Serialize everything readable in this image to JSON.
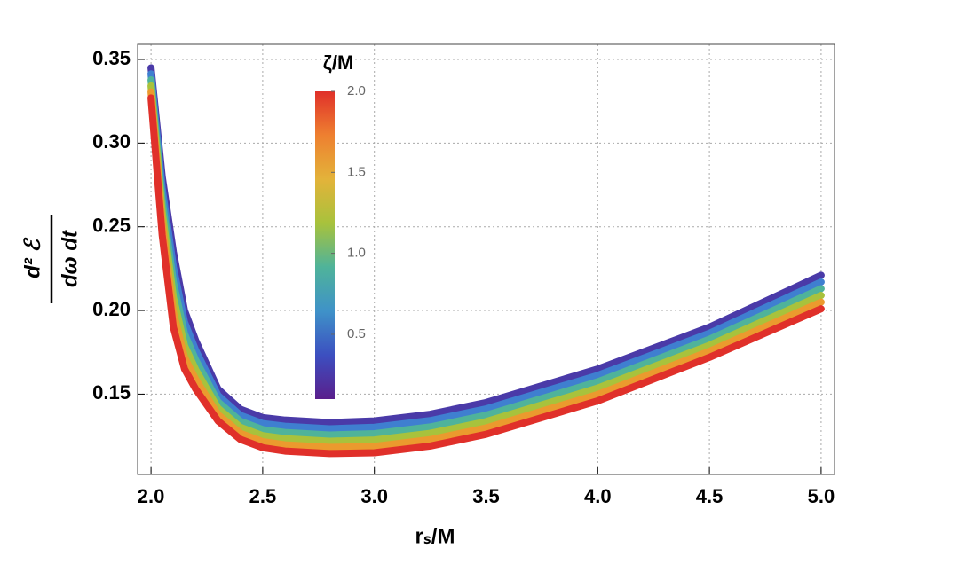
{
  "chart_data": {
    "type": "line",
    "xlabel": "rₛ/M",
    "ylabel": {
      "numerator": "d² ℰ",
      "denominator": "dω dt"
    },
    "x": [
      2.0,
      2.05,
      2.1,
      2.15,
      2.2,
      2.3,
      2.4,
      2.5,
      2.6,
      2.8,
      3.0,
      3.25,
      3.5,
      4.0,
      4.5,
      5.0
    ],
    "series": [
      {
        "color": "#4a3aa8",
        "values": [
          0.345,
          0.28,
          0.235,
          0.2,
          0.182,
          0.153,
          0.141,
          0.136,
          0.1345,
          0.133,
          0.134,
          0.138,
          0.145,
          0.165,
          0.19,
          0.221
        ]
      },
      {
        "color": "#3f7fd0",
        "values": [
          0.3414,
          0.273,
          0.226,
          0.193,
          0.1762,
          0.1492,
          0.1374,
          0.1324,
          0.1308,
          0.1293,
          0.1302,
          0.1342,
          0.1412,
          0.1612,
          0.1864,
          0.217
        ]
      },
      {
        "color": "#4fb39a",
        "values": [
          0.3378,
          0.266,
          0.217,
          0.186,
          0.1704,
          0.1454,
          0.1338,
          0.1288,
          0.1271,
          0.1256,
          0.1264,
          0.1304,
          0.1374,
          0.1574,
          0.1828,
          0.213
        ]
      },
      {
        "color": "#a8c23c",
        "values": [
          0.3342,
          0.259,
          0.208,
          0.179,
          0.1646,
          0.1416,
          0.1302,
          0.1252,
          0.1234,
          0.1219,
          0.1226,
          0.1266,
          0.1336,
          0.1536,
          0.1792,
          0.209
        ]
      },
      {
        "color": "#eb9a2e",
        "values": [
          0.3306,
          0.252,
          0.199,
          0.172,
          0.1588,
          0.1378,
          0.1266,
          0.1216,
          0.1197,
          0.1182,
          0.1188,
          0.1228,
          0.1298,
          0.1498,
          0.1756,
          0.205
        ]
      },
      {
        "color": "#e0302a",
        "values": [
          0.327,
          0.245,
          0.19,
          0.165,
          0.153,
          0.134,
          0.123,
          0.118,
          0.116,
          0.1145,
          0.115,
          0.119,
          0.126,
          0.146,
          0.172,
          0.201
        ]
      }
    ],
    "xlim": [
      1.94,
      5.06
    ],
    "ylim": [
      0.102,
      0.359
    ],
    "xticks": [
      {
        "value": 2,
        "label": "2.0"
      },
      2.5,
      {
        "value": 3,
        "label": "3.0"
      },
      3.5,
      {
        "value": 4,
        "label": "4.0"
      },
      4.5,
      {
        "value": 5,
        "label": "5.0"
      }
    ],
    "yticks": [
      0.15,
      {
        "value": 0.2,
        "label": "0.20"
      },
      0.25,
      {
        "value": 0.3,
        "label": "0.30"
      },
      0.35
    ],
    "grid": true,
    "colorbar": {
      "title": "ζ/M",
      "lim": [
        0.1,
        2.0
      ],
      "ticks": [
        0.5,
        {
          "value": 1,
          "label": "1.0"
        },
        1.5,
        {
          "value": 2,
          "label": "2.0"
        }
      ],
      "colors": [
        "#5a1f8c",
        "#3c4fc0",
        "#3f92c8",
        "#4fb39a",
        "#a8c23c",
        "#e3b33a",
        "#ee8030",
        "#e0302a"
      ]
    }
  }
}
